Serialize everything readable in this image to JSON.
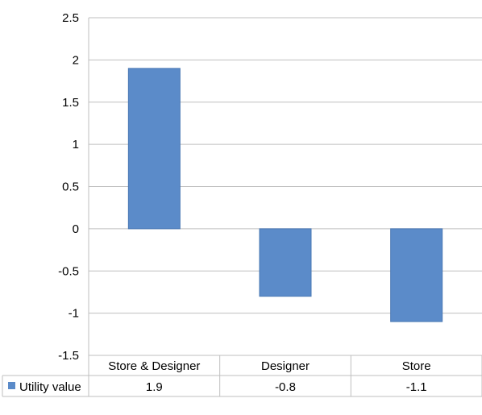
{
  "chart_data": {
    "type": "bar",
    "categories": [
      "Store & Designer",
      "Designer",
      "Store"
    ],
    "series": [
      {
        "name": "Utility value",
        "values": [
          1.9,
          -0.8,
          -1.1
        ]
      }
    ],
    "data_labels": [
      "1.9",
      "-0.8",
      "-1.1"
    ],
    "ylim": [
      -1.5,
      2.5
    ],
    "yticks": [
      "2.5",
      "2",
      "1.5",
      "1",
      "0.5",
      "0",
      "-0.5",
      "-1",
      "-1.5"
    ],
    "title": "",
    "xlabel": "",
    "ylabel": "",
    "grid": true,
    "legend": "data-table",
    "colors": {
      "bar": "#5b8bc9",
      "bar_edge": "#4a78b4",
      "grid": "#bfbfbf"
    }
  }
}
